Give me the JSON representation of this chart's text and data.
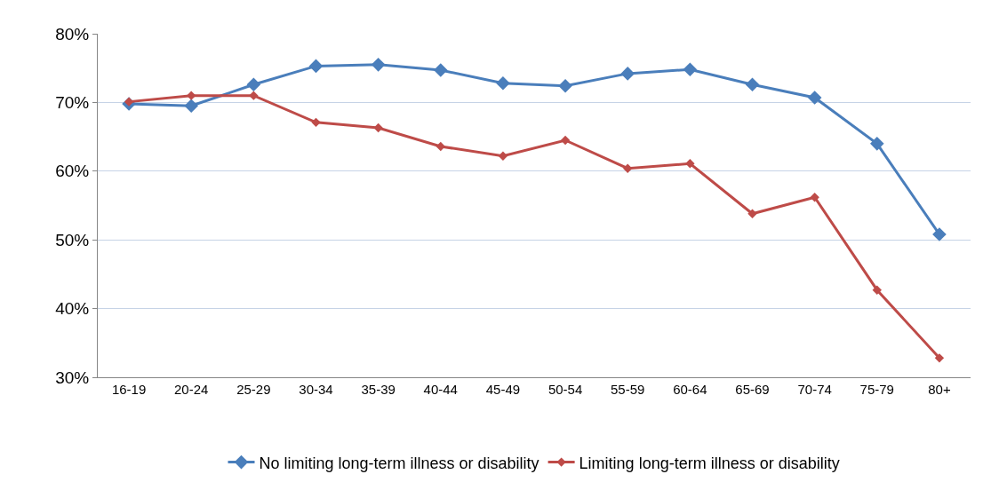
{
  "chart_data": {
    "type": "line",
    "categories": [
      "16-19",
      "20-24",
      "25-29",
      "30-34",
      "35-39",
      "40-44",
      "45-49",
      "50-54",
      "55-59",
      "60-64",
      "65-69",
      "70-74",
      "75-79",
      "80+"
    ],
    "series": [
      {
        "name": "No limiting long-term illness or disability",
        "color": "#4a7ebb",
        "values": [
          69.8,
          69.5,
          72.6,
          75.3,
          75.5,
          74.7,
          72.8,
          72.4,
          74.2,
          74.8,
          72.6,
          70.7,
          64.0,
          50.8
        ]
      },
      {
        "name": "Limiting long-term illness or disability",
        "color": "#be4b48",
        "values": [
          70.1,
          71.0,
          71.0,
          67.1,
          66.3,
          63.6,
          62.2,
          64.5,
          60.4,
          61.1,
          53.8,
          56.2,
          42.7,
          32.8
        ]
      }
    ],
    "ylim": [
      30,
      80
    ],
    "yticks": [
      {
        "value": 30,
        "label": "30%"
      },
      {
        "value": 40,
        "label": "40%"
      },
      {
        "value": 50,
        "label": "50%"
      },
      {
        "value": 60,
        "label": "60%"
      },
      {
        "value": 70,
        "label": "70%"
      },
      {
        "value": 80,
        "label": "80%"
      }
    ],
    "grid": "y",
    "legend": "bottom",
    "marker": "diamond",
    "line_style": "solid"
  }
}
